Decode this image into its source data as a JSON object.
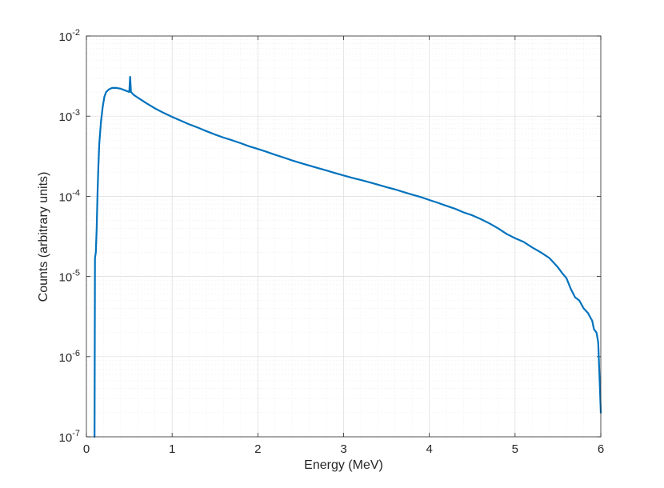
{
  "chart_data": {
    "type": "line",
    "title": "",
    "xlabel": "Energy (MeV)",
    "ylabel": "Counts (arbitrary units)",
    "xlim": [
      0,
      6
    ],
    "ylim": [
      1e-07,
      0.01
    ],
    "yscale": "log",
    "grid": true,
    "x_ticks": [
      "0",
      "1",
      "2",
      "3",
      "4",
      "5",
      "6"
    ],
    "y_ticks": [
      {
        "base": "10",
        "exp": "-7"
      },
      {
        "base": "10",
        "exp": "-6"
      },
      {
        "base": "10",
        "exp": "-5"
      },
      {
        "base": "10",
        "exp": "-4"
      },
      {
        "base": "10",
        "exp": "-3"
      },
      {
        "base": "10",
        "exp": "-2"
      }
    ],
    "series_color": "#0072BD",
    "series": [
      {
        "x": [
          0.095,
          0.1,
          0.11,
          0.12,
          0.13,
          0.14,
          0.15,
          0.17,
          0.19,
          0.21,
          0.23,
          0.26,
          0.3,
          0.35,
          0.4,
          0.45,
          0.5,
          0.51,
          0.52,
          0.53,
          0.55,
          0.6,
          0.7,
          0.8,
          0.9,
          1.0,
          1.1,
          1.2,
          1.3,
          1.4,
          1.5,
          1.6,
          1.7,
          1.8,
          1.9,
          2.0,
          2.1,
          2.2,
          2.3,
          2.4,
          2.5,
          2.6,
          2.7,
          2.8,
          2.9,
          3.0,
          3.1,
          3.2,
          3.3,
          3.4,
          3.5,
          3.6,
          3.7,
          3.8,
          3.9,
          4.0,
          4.1,
          4.2,
          4.3,
          4.4,
          4.5,
          4.6,
          4.7,
          4.8,
          4.9,
          5.0,
          5.1,
          5.2,
          5.3,
          5.4,
          5.5,
          5.55,
          5.6,
          5.65,
          5.7,
          5.75,
          5.8,
          5.85,
          5.9,
          5.92,
          5.95,
          5.97,
          5.99,
          6.0
        ],
        "y": [
          1e-07,
          1.7e-05,
          2e-05,
          4e-05,
          0.00011,
          0.00024,
          0.00045,
          0.00085,
          0.0013,
          0.00175,
          0.002,
          0.00215,
          0.00225,
          0.00225,
          0.0022,
          0.0021,
          0.002,
          0.0031,
          0.002,
          0.00195,
          0.00185,
          0.0017,
          0.00145,
          0.00125,
          0.0011,
          0.00098,
          0.00088,
          0.00079,
          0.00072,
          0.00065,
          0.00059,
          0.00054,
          0.0005,
          0.00046,
          0.00042,
          0.00039,
          0.00036,
          0.00033,
          0.000305,
          0.00028,
          0.00026,
          0.000242,
          0.000225,
          0.00021,
          0.000195,
          0.000182,
          0.00017,
          0.00016,
          0.00015,
          0.00014,
          0.00013,
          0.000122,
          0.000113,
          0.000105,
          9.8e-05,
          9e-05,
          8.3e-05,
          7.6e-05,
          7e-05,
          6.3e-05,
          5.8e-05,
          5.2e-05,
          4.6e-05,
          4e-05,
          3.4e-05,
          3e-05,
          2.7e-05,
          2.3e-05,
          2e-05,
          1.7e-05,
          1.3e-05,
          1.1e-05,
          9.5e-06,
          7e-06,
          5.5e-06,
          5e-06,
          4e-06,
          3.5e-06,
          2.8e-06,
          2.2e-06,
          2e-06,
          1.5e-06,
          4e-07,
          2e-07
        ]
      }
    ]
  }
}
